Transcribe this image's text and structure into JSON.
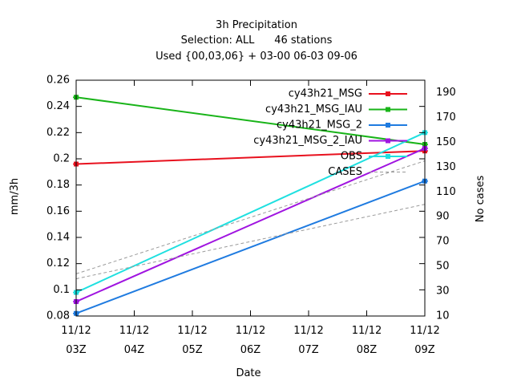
{
  "chart_data": {
    "type": "line",
    "title_lines": [
      "3h Precipitation",
      "Selection: ALL      46 stations",
      "Used {00,03,06} + 03-00 06-03 09-06"
    ],
    "xlabel": "Date",
    "ylabel": "mm/3h",
    "y2label": "No cases",
    "x_ticks": [
      {
        "top": "11/12",
        "bottom": "03Z"
      },
      {
        "top": "11/12",
        "bottom": "04Z"
      },
      {
        "top": "11/12",
        "bottom": "05Z"
      },
      {
        "top": "11/12",
        "bottom": "06Z"
      },
      {
        "top": "11/12",
        "bottom": "07Z"
      },
      {
        "top": "11/12",
        "bottom": "08Z"
      },
      {
        "top": "11/12",
        "bottom": "09Z"
      }
    ],
    "x_hours": [
      3,
      9
    ],
    "xlim": [
      3,
      9
    ],
    "ylim": [
      0.08,
      0.26
    ],
    "y_ticks": [
      "0.08",
      "0.1",
      "0.12",
      "0.14",
      "0.16",
      "0.18",
      "0.2",
      "0.22",
      "0.24",
      "0.26"
    ],
    "y2lim": [
      10,
      200
    ],
    "y2_ticks": [
      "10",
      "30",
      "50",
      "70",
      "90",
      "110",
      "130",
      "150",
      "170",
      "190"
    ],
    "series": [
      {
        "name": "cy43h21_MSG",
        "color": "#e8111e",
        "values": [
          0.196,
          0.206
        ],
        "markers": true,
        "dashed": false,
        "axis": "y"
      },
      {
        "name": "cy43h21_MSG_IAU",
        "color": "#19b419",
        "values": [
          0.247,
          0.211
        ],
        "markers": true,
        "dashed": false,
        "axis": "y"
      },
      {
        "name": "cy43h21_MSG_2",
        "color": "#1f7be0",
        "values": [
          0.082,
          0.183
        ],
        "markers": true,
        "dashed": false,
        "axis": "y"
      },
      {
        "name": "cy43h21_MSG_2_IAU",
        "color": "#a014e0",
        "values": [
          0.091,
          0.208
        ],
        "markers": true,
        "dashed": false,
        "axis": "y"
      },
      {
        "name": "OBS",
        "color": "#1fe0e0",
        "values": [
          0.098,
          0.22
        ],
        "markers": true,
        "dashed": false,
        "axis": "y"
      },
      {
        "name": "CASES",
        "color": "#9a9a9a",
        "values": [
          44,
          135
        ],
        "markers": false,
        "dashed": true,
        "axis": "y2"
      },
      {
        "name": "",
        "color": "#9a9a9a",
        "values": [
          40,
          100
        ],
        "markers": false,
        "dashed": true,
        "axis": "y2"
      }
    ],
    "legend_position": "top-right",
    "grid": false
  }
}
